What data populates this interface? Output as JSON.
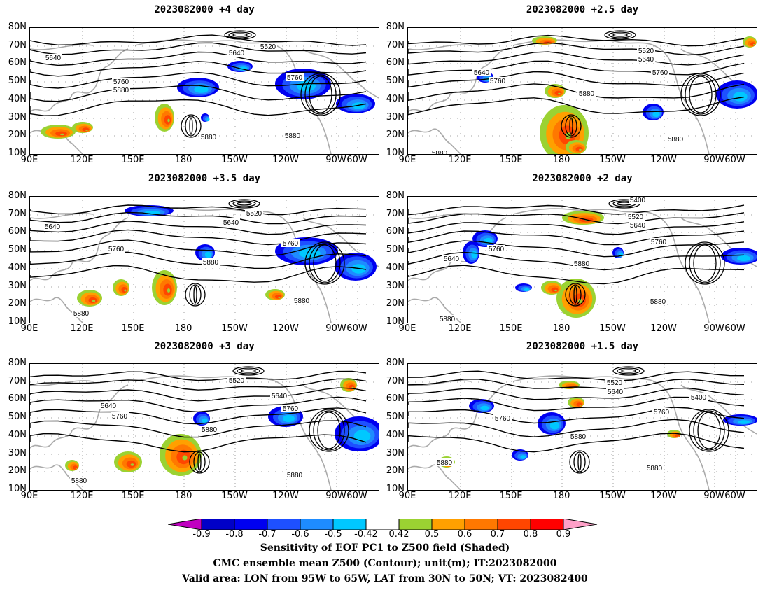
{
  "panels": [
    {
      "title": "2023082000  +4 day"
    },
    {
      "title": "2023082000  +2.5 day"
    },
    {
      "title": "2023082000  +3.5 day"
    },
    {
      "title": "2023082000  +2 day"
    },
    {
      "title": "2023082000  +3 day"
    },
    {
      "title": "2023082000  +1.5 day"
    }
  ],
  "lat_labels": [
    "80N",
    "70N",
    "60N",
    "50N",
    "40N",
    "30N",
    "20N",
    "10N"
  ],
  "lon_labels": [
    "90E",
    "120E",
    "150E",
    "180",
    "150W",
    "120W",
    "90W",
    "60W"
  ],
  "contour_labels": [
    [
      {
        "t": "5640"
      },
      {
        "t": "5760"
      },
      {
        "t": "5880"
      },
      {
        "t": "5880"
      },
      {
        "t": "5640"
      },
      {
        "t": "5520"
      },
      {
        "t": "5760"
      },
      {
        "t": "5880"
      }
    ],
    [
      {
        "t": "5640"
      },
      {
        "t": "5760"
      },
      {
        "t": "5880"
      },
      {
        "t": "5520"
      },
      {
        "t": "5640"
      },
      {
        "t": "5760"
      },
      {
        "t": "5880"
      },
      {
        "t": "5880"
      }
    ],
    [
      {
        "t": "5640"
      },
      {
        "t": "5760"
      },
      {
        "t": "5880"
      },
      {
        "t": "5880"
      },
      {
        "t": "5520"
      },
      {
        "t": "5640"
      },
      {
        "t": "5760"
      },
      {
        "t": "5880"
      }
    ],
    [
      {
        "t": "5400"
      },
      {
        "t": "5520"
      },
      {
        "t": "5640"
      },
      {
        "t": "5760"
      },
      {
        "t": "5640"
      },
      {
        "t": "5760"
      },
      {
        "t": "5880"
      },
      {
        "t": "5880"
      },
      {
        "t": "5880"
      }
    ],
    [
      {
        "t": "5520"
      },
      {
        "t": "5640"
      },
      {
        "t": "5760"
      },
      {
        "t": "5880"
      },
      {
        "t": "5640"
      },
      {
        "t": "5760"
      },
      {
        "t": "5880"
      },
      {
        "t": "5880"
      }
    ],
    [
      {
        "t": "5520"
      },
      {
        "t": "5640"
      },
      {
        "t": "5400"
      },
      {
        "t": "5760"
      },
      {
        "t": "5760"
      },
      {
        "t": "5880"
      },
      {
        "t": "5880"
      },
      {
        "t": "5880"
      }
    ]
  ],
  "colorbar": {
    "labels": [
      "-0.9",
      "-0.8",
      "-0.7",
      "-0.6",
      "-0.5",
      "-0.42",
      "0.42",
      "0.5",
      "0.6",
      "0.7",
      "0.8",
      "0.9"
    ],
    "colors": [
      "#c000c0",
      "#0000c8",
      "#0000f0",
      "#1e50ff",
      "#1e8cff",
      "#00c8ff",
      "#ffffff",
      "#9bd232",
      "#ffa000",
      "#ff7800",
      "#ff4600",
      "#ff0000",
      "#ffa0c8"
    ]
  },
  "captions": [
    "Sensitivity of EOF PC1 to Z500 field (Shaded)",
    "CMC ensemble mean Z500 (Contour); unit(m); IT:2023082000",
    "Valid area: LON from 95W to 65W, LAT from 30N to 50N; VT: 2023082400"
  ]
}
